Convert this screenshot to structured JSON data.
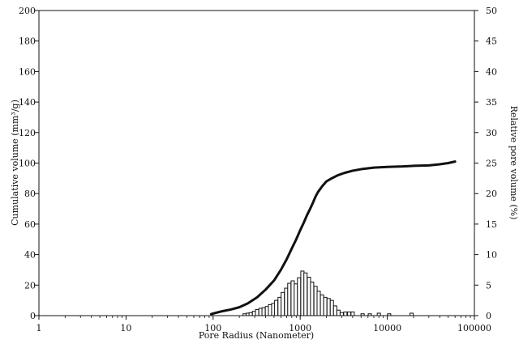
{
  "chart_data": {
    "type": "bar+line",
    "title": "",
    "xlabel": "Pore Radius  (Nanometer)",
    "ylabel_left": "Cumulative volume (mm³/g)",
    "ylabel_right": "Relative pore volume (%)",
    "x_scale": "log",
    "xlim": [
      1,
      100000
    ],
    "ylim_left": [
      0,
      200
    ],
    "ylim_right": [
      0,
      50
    ],
    "grid": false,
    "legend": "none",
    "x_ticks": [
      {
        "value": 1,
        "label": "1"
      },
      {
        "value": 10,
        "label": "10"
      },
      {
        "value": 100,
        "label": "100"
      },
      {
        "value": 1000,
        "label": "1000"
      },
      {
        "value": 10000,
        "label": "10000"
      },
      {
        "value": 100000,
        "label": "100000"
      }
    ],
    "y_ticks_left": [
      {
        "value": 0,
        "label": "0"
      },
      {
        "value": 20,
        "label": "20"
      },
      {
        "value": 40,
        "label": "40"
      },
      {
        "value": 60,
        "label": "60"
      },
      {
        "value": 80,
        "label": "80"
      },
      {
        "value": 100,
        "label": "100"
      },
      {
        "value": 120,
        "label": "120"
      },
      {
        "value": 140,
        "label": "140"
      },
      {
        "value": 160,
        "label": "160"
      },
      {
        "value": 180,
        "label": "180"
      },
      {
        "value": 200,
        "label": "200"
      }
    ],
    "y_ticks_right": [
      {
        "value": 0,
        "label": "0"
      },
      {
        "value": 5,
        "label": "5"
      },
      {
        "value": 10,
        "label": "10"
      },
      {
        "value": 15,
        "label": "15"
      },
      {
        "value": 20,
        "label": "20"
      },
      {
        "value": 25,
        "label": "25"
      },
      {
        "value": 30,
        "label": "30"
      },
      {
        "value": 35,
        "label": "35"
      },
      {
        "value": 40,
        "label": "40"
      },
      {
        "value": 45,
        "label": "45"
      },
      {
        "value": 50,
        "label": "50"
      }
    ],
    "cumulative_curve": {
      "axis": "left",
      "points": [
        {
          "x": 95,
          "y": 1
        },
        {
          "x": 110,
          "y": 2
        },
        {
          "x": 130,
          "y": 3
        },
        {
          "x": 160,
          "y": 4
        },
        {
          "x": 200,
          "y": 5.5
        },
        {
          "x": 250,
          "y": 8
        },
        {
          "x": 320,
          "y": 12
        },
        {
          "x": 400,
          "y": 17
        },
        {
          "x": 500,
          "y": 23
        },
        {
          "x": 600,
          "y": 30
        },
        {
          "x": 700,
          "y": 37
        },
        {
          "x": 800,
          "y": 44
        },
        {
          "x": 900,
          "y": 50
        },
        {
          "x": 1000,
          "y": 56
        },
        {
          "x": 1100,
          "y": 61
        },
        {
          "x": 1200,
          "y": 66
        },
        {
          "x": 1300,
          "y": 70
        },
        {
          "x": 1400,
          "y": 74
        },
        {
          "x": 1500,
          "y": 78
        },
        {
          "x": 1600,
          "y": 81
        },
        {
          "x": 1800,
          "y": 85
        },
        {
          "x": 2000,
          "y": 88
        },
        {
          "x": 2300,
          "y": 90
        },
        {
          "x": 2700,
          "y": 92
        },
        {
          "x": 3200,
          "y": 93.5
        },
        {
          "x": 4000,
          "y": 95
        },
        {
          "x": 5000,
          "y": 96
        },
        {
          "x": 7000,
          "y": 97
        },
        {
          "x": 10000,
          "y": 97.5
        },
        {
          "x": 15000,
          "y": 97.8
        },
        {
          "x": 20000,
          "y": 98.2
        },
        {
          "x": 30000,
          "y": 98.5
        },
        {
          "x": 40000,
          "y": 99.2
        },
        {
          "x": 50000,
          "y": 100
        },
        {
          "x": 60000,
          "y": 101
        }
      ]
    },
    "relative_bars": {
      "axis": "right",
      "bars": [
        {
          "x": 230,
          "y": 0.3
        },
        {
          "x": 250,
          "y": 0.4
        },
        {
          "x": 270,
          "y": 0.5
        },
        {
          "x": 295,
          "y": 0.7
        },
        {
          "x": 320,
          "y": 1.0
        },
        {
          "x": 350,
          "y": 1.2
        },
        {
          "x": 380,
          "y": 1.3
        },
        {
          "x": 415,
          "y": 1.5
        },
        {
          "x": 450,
          "y": 1.8
        },
        {
          "x": 490,
          "y": 2.0
        },
        {
          "x": 530,
          "y": 2.5
        },
        {
          "x": 580,
          "y": 3.0
        },
        {
          "x": 630,
          "y": 3.8
        },
        {
          "x": 690,
          "y": 4.5
        },
        {
          "x": 750,
          "y": 5.3
        },
        {
          "x": 820,
          "y": 5.7
        },
        {
          "x": 890,
          "y": 5.2
        },
        {
          "x": 970,
          "y": 6.2
        },
        {
          "x": 1060,
          "y": 7.3
        },
        {
          "x": 1150,
          "y": 7.0
        },
        {
          "x": 1260,
          "y": 6.3
        },
        {
          "x": 1370,
          "y": 5.5
        },
        {
          "x": 1500,
          "y": 4.8
        },
        {
          "x": 1630,
          "y": 4.0
        },
        {
          "x": 1780,
          "y": 3.4
        },
        {
          "x": 1940,
          "y": 3.0
        },
        {
          "x": 2120,
          "y": 2.8
        },
        {
          "x": 2310,
          "y": 2.5
        },
        {
          "x": 2520,
          "y": 1.6
        },
        {
          "x": 2750,
          "y": 0.9
        },
        {
          "x": 3000,
          "y": 0.5
        },
        {
          "x": 3300,
          "y": 0.6
        },
        {
          "x": 3650,
          "y": 0.6
        },
        {
          "x": 4000,
          "y": 0.6
        },
        {
          "x": 5200,
          "y": 0.3
        },
        {
          "x": 6300,
          "y": 0.3
        },
        {
          "x": 8000,
          "y": 0.4
        },
        {
          "x": 10500,
          "y": 0.3
        },
        {
          "x": 19000,
          "y": 0.4
        }
      ]
    }
  }
}
